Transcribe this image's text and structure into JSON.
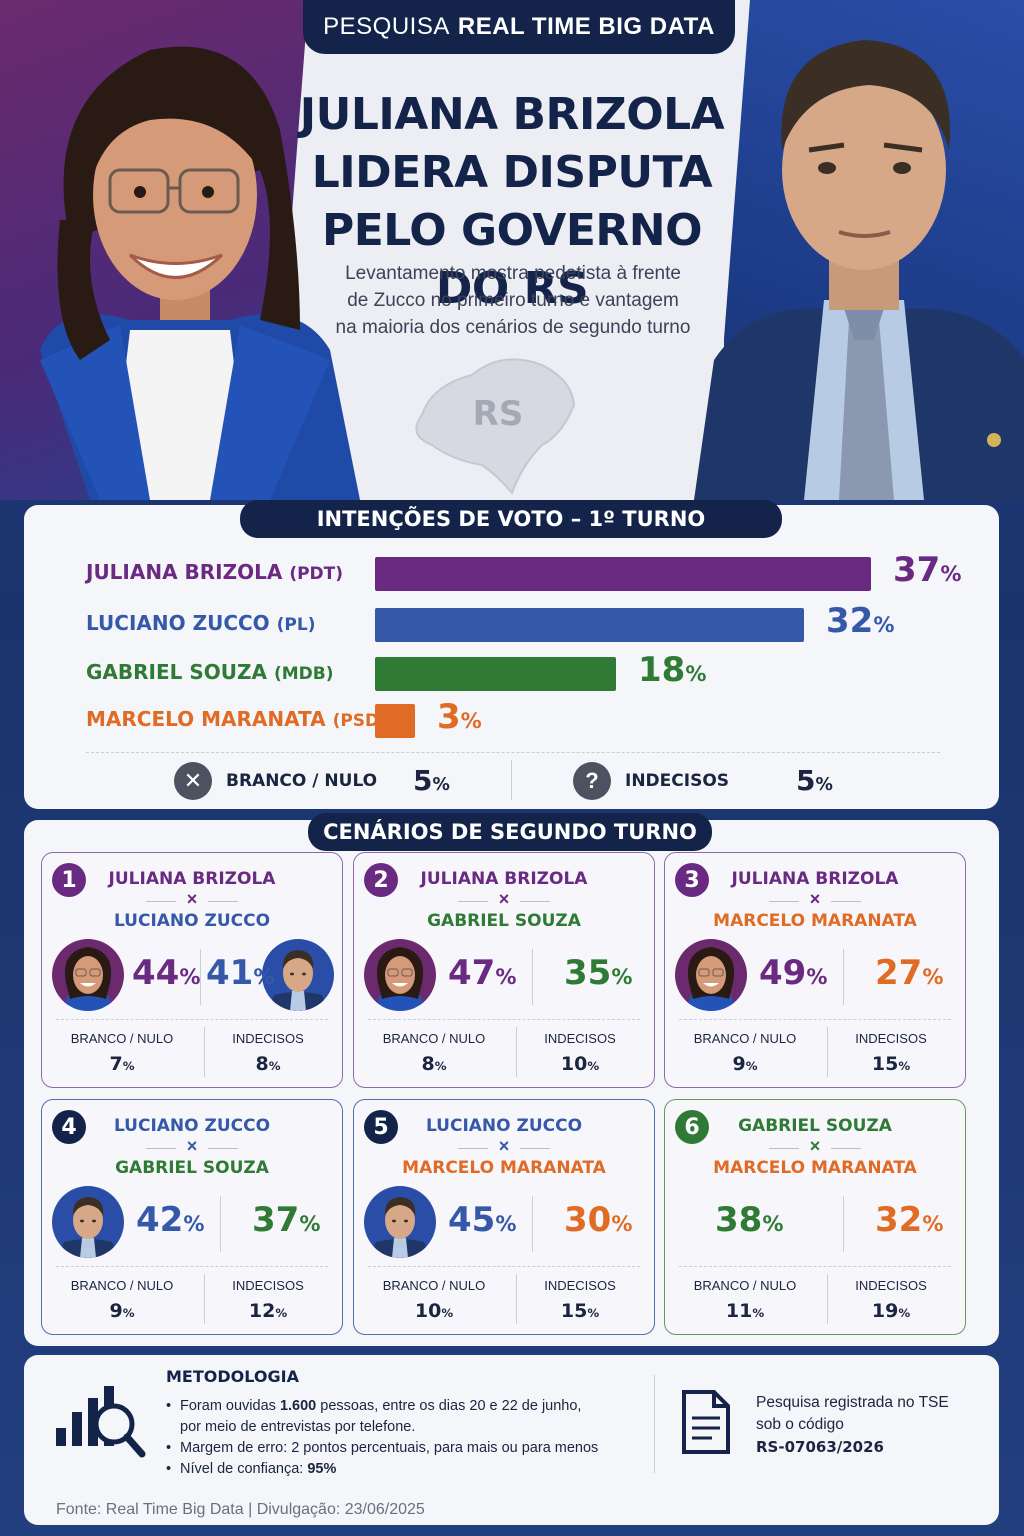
{
  "header": {
    "pill_light": "PESQUISA",
    "pill_bold": "REAL TIME BIG DATA",
    "headline_1": "JULIANA BRIZOLA",
    "headline_2": "LIDERA DISPUTA",
    "headline_3": "PELO GOVERNO DO RS",
    "subtitle_1": "Levantamento mostra pedetista à frente",
    "subtitle_2": "de Zucco no primeiro turno e vantagem",
    "subtitle_3": "na maioria dos cenários de segundo turno",
    "map_label": "RS"
  },
  "colors": {
    "juliana": "#6b2a82",
    "zucco": "#3559a8",
    "gabriel": "#2f7a35",
    "marcelo": "#e06b25",
    "navy": "#13234a"
  },
  "chart_data": [
    {
      "type": "bar",
      "title": "INTENÇÕES DE VOTO – 1º TURNO",
      "categories": [
        "JULIANA BRIZOLA",
        "LUCIANO ZUCCO",
        "GABRIEL SOUZA",
        "MARCELO MARANATA"
      ],
      "parties": [
        "(PDT)",
        "(PL)",
        "(MDB)",
        "(PSDB)"
      ],
      "values": [
        37,
        32,
        18,
        3
      ],
      "value_labels": [
        "37",
        "32",
        "18",
        "3"
      ],
      "unit": "%",
      "extras": {
        "branco_label": "BRANCO / NULO",
        "branco_value": "5",
        "indecisos_label": "INDECISOS",
        "indecisos_value": "5"
      }
    },
    {
      "type": "table",
      "title": "CENÁRIOS DE SEGUNDO TURNO",
      "scenarios": [
        {
          "num": "1",
          "a": "JULIANA BRIZOLA",
          "b": "LUCIANO ZUCCO",
          "x": "×",
          "va": "44",
          "vb": "41",
          "branco_label": "BRANCO / NULO",
          "branco": "7",
          "indecisos_label": "INDECISOS",
          "indecisos": "8"
        },
        {
          "num": "2",
          "a": "JULIANA BRIZOLA",
          "b": "GABRIEL SOUZA",
          "x": "×",
          "va": "47",
          "vb": "35",
          "branco_label": "BRANCO / NULO",
          "branco": "8",
          "indecisos_label": "INDECISOS",
          "indecisos": "10"
        },
        {
          "num": "3",
          "a": "JULIANA BRIZOLA",
          "b": "MARCELO MARANATA",
          "x": "×",
          "va": "49",
          "vb": "27",
          "branco_label": "BRANCO / NULO",
          "branco": "9",
          "indecisos_label": "INDECISOS",
          "indecisos": "15"
        },
        {
          "num": "4",
          "a": "LUCIANO ZUCCO",
          "b": "GABRIEL SOUZA",
          "x": "×",
          "va": "42",
          "vb": "37",
          "branco_label": "BRANCO / NULO",
          "branco": "9",
          "indecisos_label": "INDECISOS",
          "indecisos": "12"
        },
        {
          "num": "5",
          "a": "LUCIANO ZUCCO",
          "b": "MARCELO MARANATA",
          "x": "×",
          "va": "45",
          "vb": "30",
          "branco_label": "BRANCO / NULO",
          "branco": "10",
          "indecisos_label": "INDECISOS",
          "indecisos": "15"
        },
        {
          "num": "6",
          "a": "GABRIEL SOUZA",
          "b": "MARCELO MARANATA",
          "x": "×",
          "va": "38",
          "vb": "32",
          "branco_label": "BRANCO / NULO",
          "branco": "11",
          "indecisos_label": "INDECISOS",
          "indecisos": "19"
        }
      ]
    }
  ],
  "methodology": {
    "title": "METODOLOGIA",
    "line1_a": "Foram ouvidas ",
    "line1_b": "1.600",
    "line1_c": " pessoas, entre os dias 20 e 22 de junho,",
    "line1_d": "por meio de entrevistas por telefone.",
    "line2": "Margem de erro: 2 pontos percentuais, para mais ou para menos",
    "line3_a": "Nível de confiança: ",
    "line3_b": "95%",
    "registry_1": "Pesquisa registrada no TSE",
    "registry_2": "sob o código",
    "registry_code": "RS-07063/2026",
    "icon_chart": "bar-chart-magnifier-icon",
    "icon_doc": "document-icon"
  },
  "footer": {
    "source": "Fonte: Real Time Big Data  |  Divulgação: 23/06/2025"
  }
}
